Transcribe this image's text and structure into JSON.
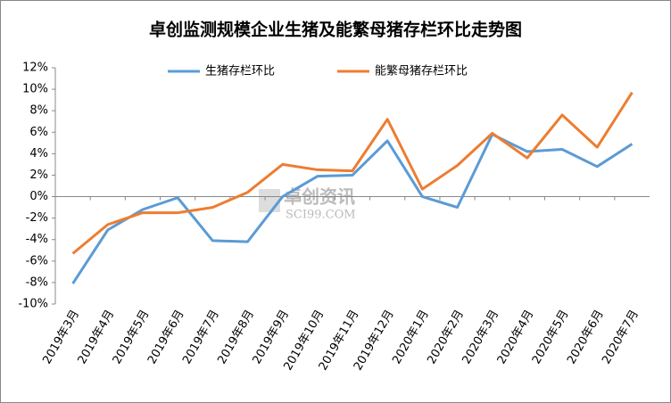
{
  "chart_data": {
    "type": "line",
    "title": "卓创监测规模企业生猪及能繁母猪存栏环比走势图",
    "watermark": "卓创资讯",
    "watermark_sub": "SCI99.COM",
    "categories": [
      "2019年3月",
      "2019年4月",
      "2019年5月",
      "2019年6月",
      "2019年7月",
      "2019年8月",
      "2019年9月",
      "2019年10月",
      "2019年11月",
      "2019年12月",
      "2020年1月",
      "2020年2月",
      "2020年3月",
      "2020年4月",
      "2020年5月",
      "2020年6月",
      "2020年7月"
    ],
    "series": [
      {
        "name": "生猪存栏环比",
        "color": "#5b9bd5",
        "values": [
          -8.1,
          -3.1,
          -1.2,
          -0.1,
          -4.1,
          -4.2,
          0.0,
          1.9,
          2.0,
          5.2,
          0.0,
          -1.0,
          5.8,
          4.2,
          4.4,
          2.8,
          4.9
        ]
      },
      {
        "name": "能繁母猪存栏环比",
        "color": "#ed7d31",
        "values": [
          -5.3,
          -2.6,
          -1.5,
          -1.5,
          -1.0,
          0.4,
          3.0,
          2.5,
          2.4,
          7.2,
          0.7,
          2.9,
          5.9,
          3.6,
          7.6,
          4.6,
          9.7
        ]
      }
    ],
    "ylim": [
      -10,
      12
    ],
    "yticks": [
      {
        "value": -10,
        "label": "-10%"
      },
      {
        "value": -8,
        "label": "-8%"
      },
      {
        "value": -6,
        "label": "-6%"
      },
      {
        "value": -4,
        "label": "-4%"
      },
      {
        "value": -2,
        "label": "-2%"
      },
      {
        "value": 0,
        "label": "0%"
      },
      {
        "value": 2,
        "label": "2%"
      },
      {
        "value": 4,
        "label": "4%"
      },
      {
        "value": 6,
        "label": "6%"
      },
      {
        "value": 8,
        "label": "8%"
      },
      {
        "value": 10,
        "label": "10%"
      },
      {
        "value": 12,
        "label": "12%"
      }
    ],
    "grid": false,
    "legend": "top"
  }
}
